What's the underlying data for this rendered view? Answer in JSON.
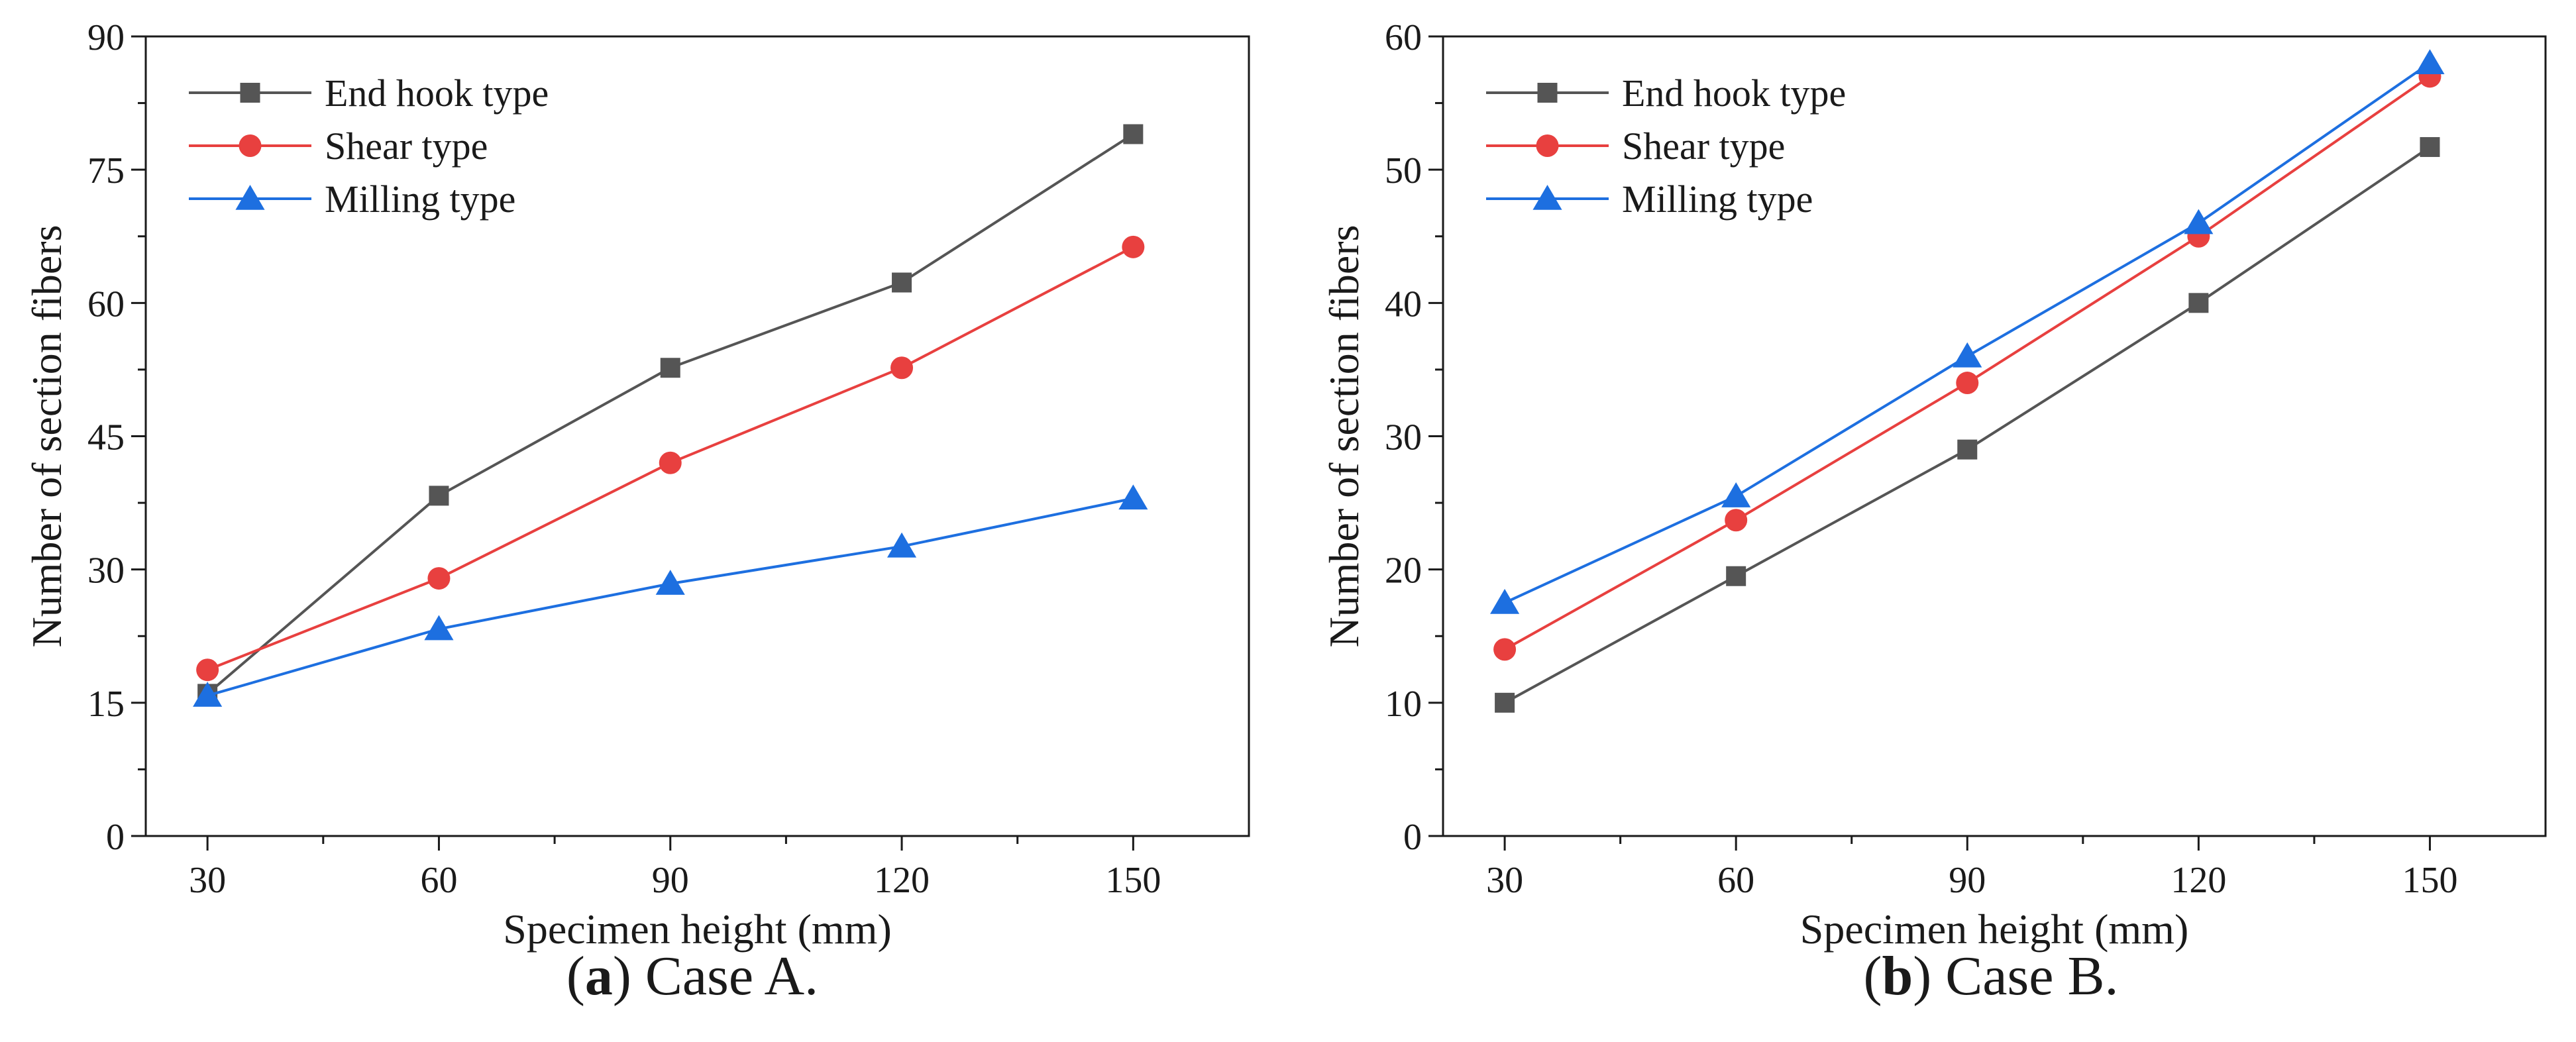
{
  "chart_data": [
    {
      "type": "line",
      "xlabel": "Specimen height (mm)",
      "ylabel": "Number of section fibers",
      "xlim": [
        22,
        165
      ],
      "ylim": [
        0,
        90
      ],
      "x": [
        30,
        60,
        90,
        120,
        150
      ],
      "xticks": [
        30,
        60,
        90,
        120,
        150
      ],
      "yticks": [
        0,
        15,
        30,
        45,
        60,
        75,
        90
      ],
      "grid": false,
      "legend_position": "top-left",
      "series": [
        {
          "name": "End hook type",
          "values": [
            16,
            38.3,
            52.7,
            62.3,
            79
          ],
          "color": "#555555",
          "marker": "square"
        },
        {
          "name": "Shear type",
          "values": [
            18.7,
            29,
            42,
            52.7,
            66.3
          ],
          "color": "#e8403f",
          "marker": "circle"
        },
        {
          "name": "Milling type",
          "values": [
            15.8,
            23.3,
            28.4,
            32.6,
            38
          ],
          "color": "#1d6fe0",
          "marker": "triangle"
        }
      ],
      "caption": {
        "letter": "a",
        "text": "Case A."
      }
    },
    {
      "type": "line",
      "xlabel": "Specimen height (mm)",
      "ylabel": "Number of section fibers",
      "xlim": [
        22,
        165
      ],
      "ylim": [
        0,
        60
      ],
      "x": [
        30,
        60,
        90,
        120,
        150
      ],
      "xticks": [
        30,
        60,
        90,
        120,
        150
      ],
      "yticks": [
        0,
        10,
        20,
        30,
        40,
        50,
        60
      ],
      "grid": false,
      "legend_position": "top-left",
      "series": [
        {
          "name": "End hook type",
          "values": [
            10,
            19.5,
            29,
            40,
            51.7
          ],
          "color": "#555555",
          "marker": "square"
        },
        {
          "name": "Shear type",
          "values": [
            14,
            23.7,
            34,
            45,
            57
          ],
          "color": "#e8403f",
          "marker": "circle"
        },
        {
          "name": "Milling type",
          "values": [
            17.5,
            25.5,
            36,
            46,
            58
          ],
          "color": "#1d6fe0",
          "marker": "triangle"
        }
      ],
      "caption": {
        "letter": "b",
        "text": "Case B."
      }
    }
  ]
}
